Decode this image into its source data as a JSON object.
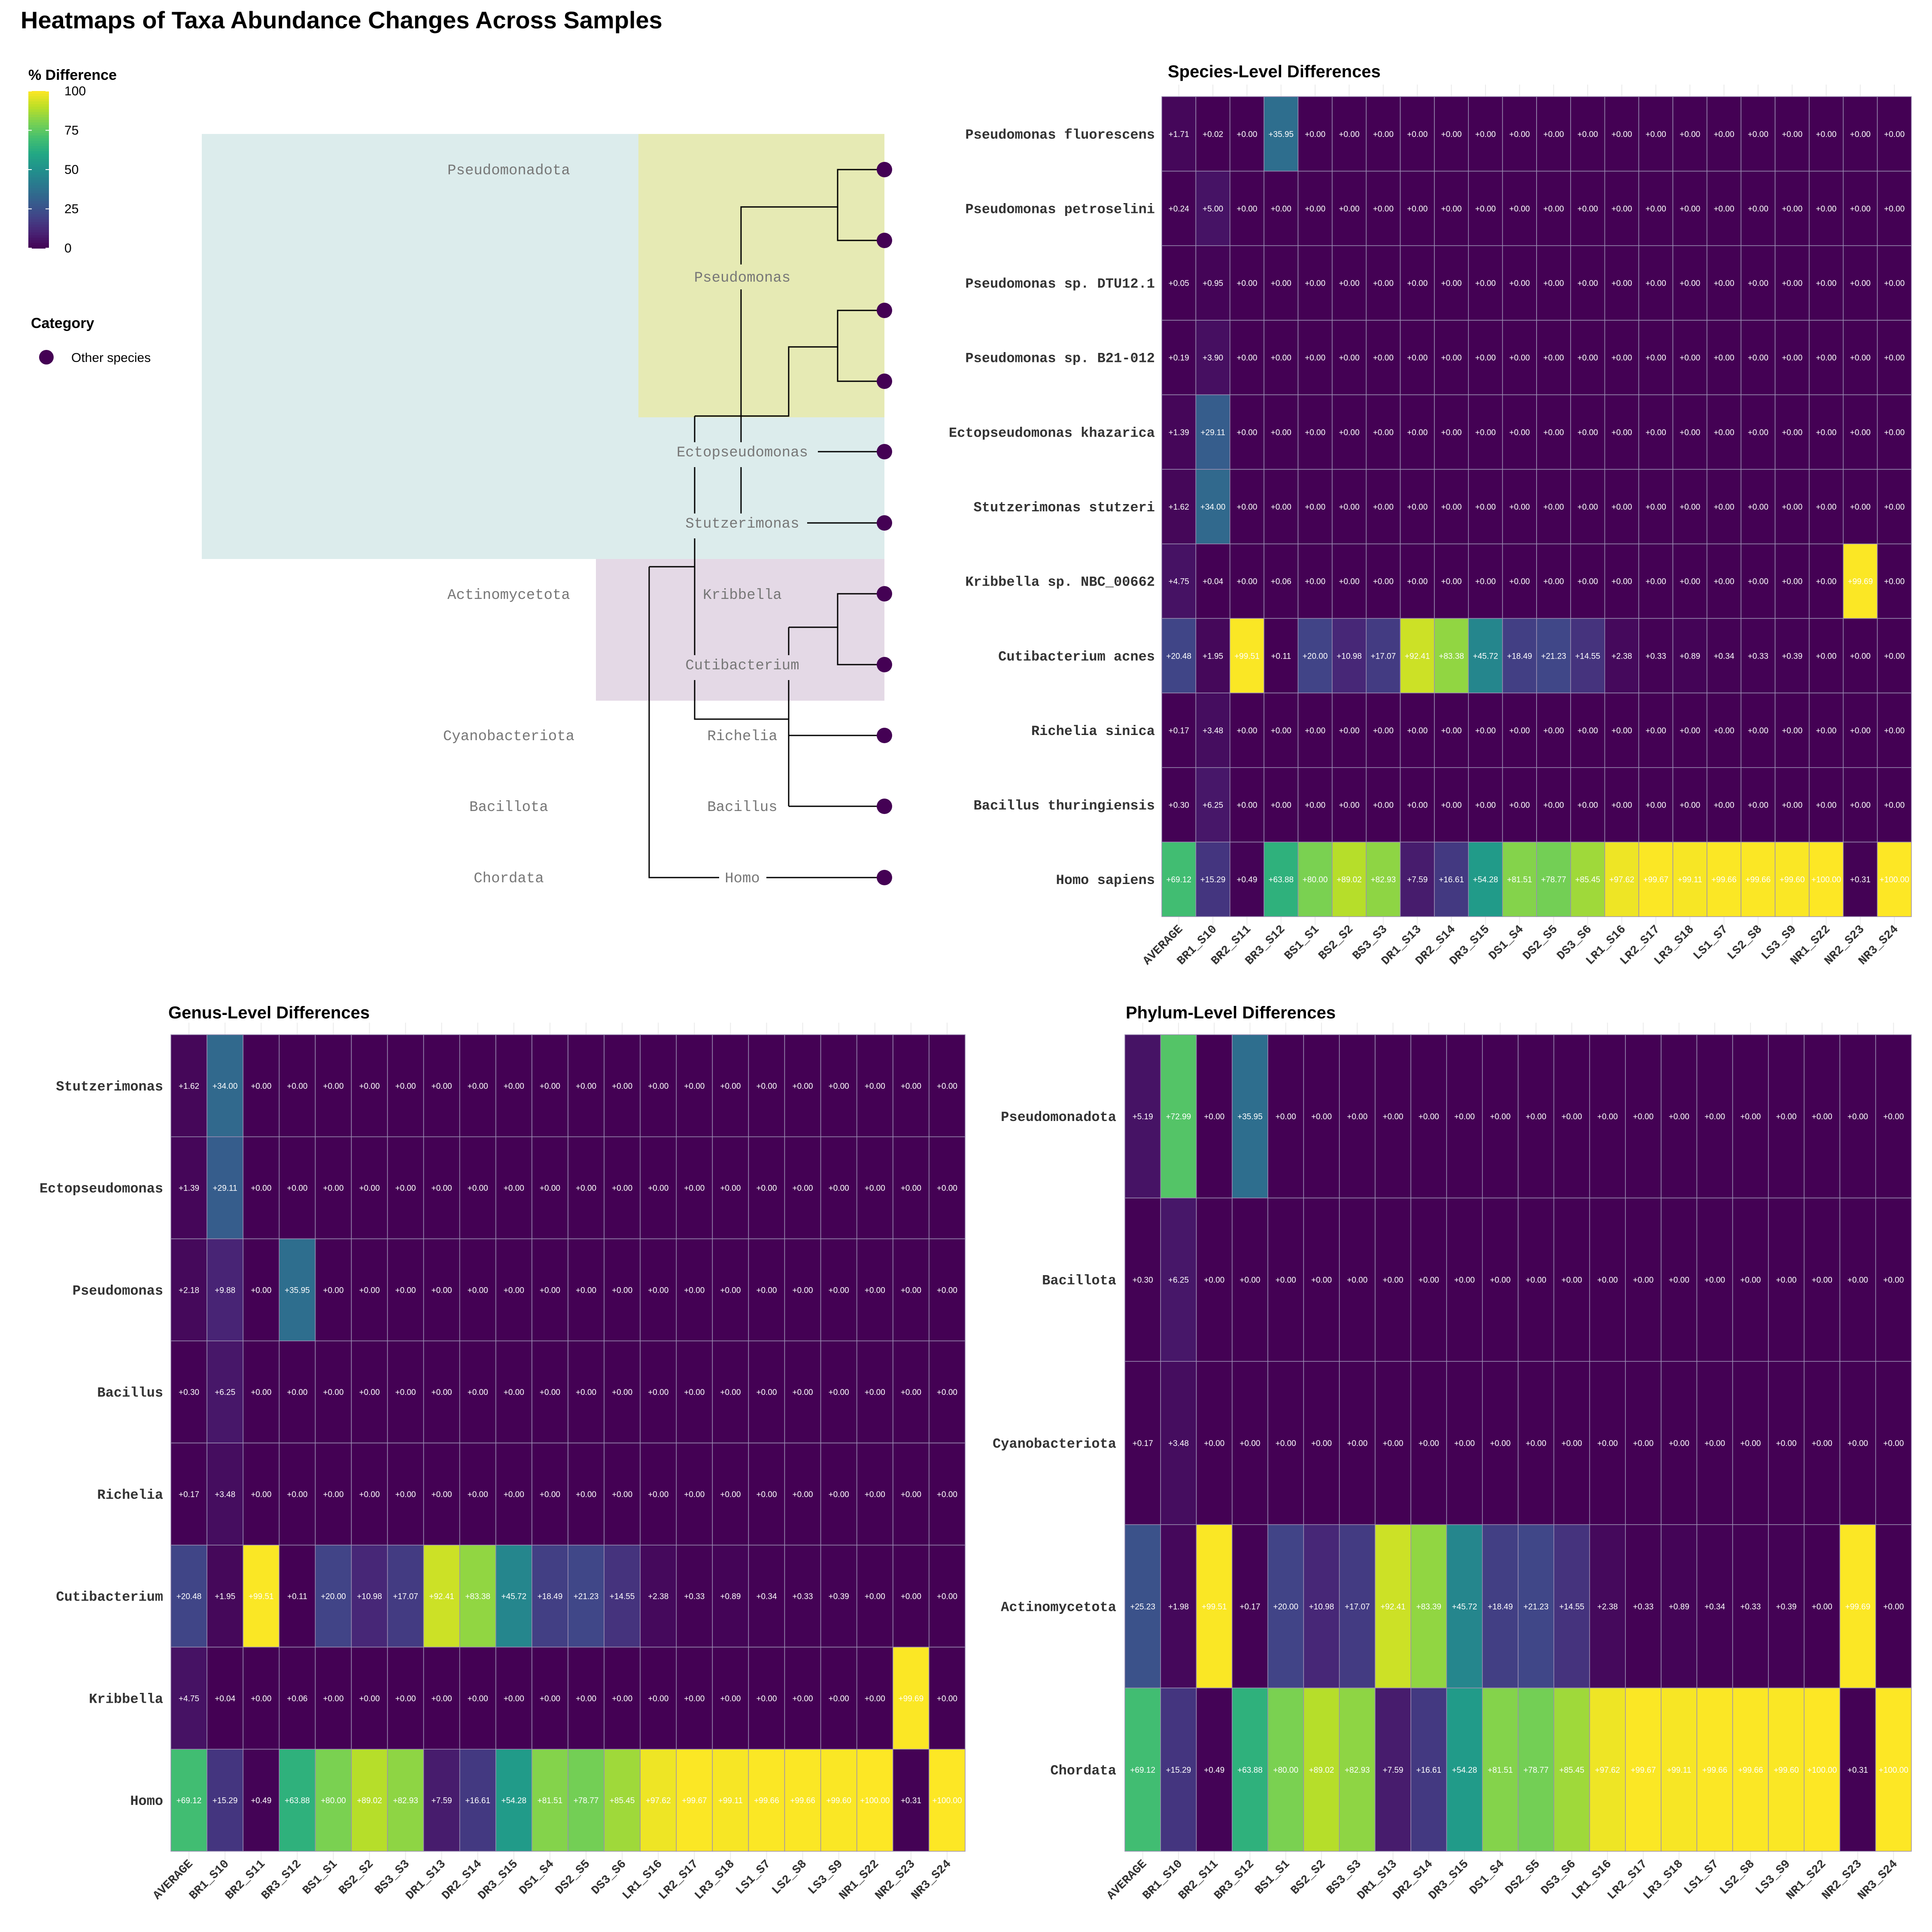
{
  "title": "Heatmaps of Taxa Abundance Changes Across Samples",
  "legend": {
    "colorbar_title": "% Difference",
    "colorbar_ticks": [
      0,
      25,
      50,
      75,
      100
    ],
    "category_title": "Category",
    "category_label": "Other species",
    "category_color": "#440154"
  },
  "colors": {
    "viridis": [
      "#440154",
      "#482475",
      "#414487",
      "#355f8d",
      "#2a788e",
      "#21918c",
      "#22a884",
      "#44bf70",
      "#7ad151",
      "#bddf26",
      "#fde725"
    ],
    "tree_bands": {
      "Pseudomonadota": "#dcecec",
      "Pseudomonas": "#e6eab4",
      "Actinomycetota": "#e4d9e6"
    },
    "leaf_dot": "#440154",
    "grid_line": "#9b8fb3"
  },
  "tree": {
    "phyla": [
      "Pseudomonadota",
      "Actinomycetota",
      "Cyanobacteriota",
      "Bacillota",
      "Chordata"
    ],
    "genera": [
      "Pseudomonas",
      "Ectopseudomonas",
      "Stutzerimonas",
      "Kribbella",
      "Cutibacterium",
      "Richelia",
      "Bacillus",
      "Homo"
    ]
  },
  "chart_data": [
    {
      "type": "heatmap",
      "title": "Species-Level Differences",
      "columns": [
        "AVERAGE",
        "BR1_S10",
        "BR2_S11",
        "BR3_S12",
        "BS1_S1",
        "BS2_S2",
        "BS3_S3",
        "DR1_S13",
        "DR2_S14",
        "DR3_S15",
        "DS1_S4",
        "DS2_S5",
        "DS3_S6",
        "LR1_S16",
        "LR2_S17",
        "LR3_S18",
        "LS1_S7",
        "LS2_S8",
        "LS3_S9",
        "NR1_S22",
        "NR2_S23",
        "NR3_S24"
      ],
      "rows": [
        "Pseudomonas fluorescens",
        "Pseudomonas petroselini",
        "Pseudomonas sp. DTU12.1",
        "Pseudomonas sp. B21-012",
        "Ectopseudomonas khazarica",
        "Stutzerimonas stutzeri",
        "Kribbella sp. NBC_00662",
        "Cutibacterium acnes",
        "Richelia sinica",
        "Bacillus thuringiensis",
        "Homo sapiens"
      ],
      "values": [
        [
          1.71,
          0.02,
          0,
          35.95,
          0,
          0,
          0,
          0,
          0,
          0,
          0,
          0,
          0,
          0,
          0,
          0,
          0,
          0,
          0,
          0,
          0,
          0
        ],
        [
          0.24,
          5.0,
          0,
          0,
          0,
          0,
          0,
          0,
          0,
          0,
          0,
          0,
          0,
          0,
          0,
          0,
          0,
          0,
          0,
          0,
          0,
          0
        ],
        [
          0.05,
          0.95,
          0,
          0,
          0,
          0,
          0,
          0,
          0,
          0,
          0,
          0,
          0,
          0,
          0,
          0,
          0,
          0,
          0,
          0,
          0,
          0
        ],
        [
          0.19,
          3.9,
          0,
          0,
          0,
          0,
          0,
          0,
          0,
          0,
          0,
          0,
          0,
          0,
          0,
          0,
          0,
          0,
          0,
          0,
          0,
          0
        ],
        [
          1.39,
          29.11,
          0,
          0,
          0,
          0,
          0,
          0,
          0,
          0,
          0,
          0,
          0,
          0,
          0,
          0,
          0,
          0,
          0,
          0,
          0,
          0
        ],
        [
          1.62,
          34.0,
          0,
          0,
          0,
          0,
          0,
          0,
          0,
          0,
          0,
          0,
          0,
          0,
          0,
          0,
          0,
          0,
          0,
          0,
          0,
          0
        ],
        [
          4.75,
          0.04,
          0,
          0.06,
          0,
          0,
          0,
          0,
          0,
          0,
          0,
          0,
          0,
          0,
          0,
          0,
          0,
          0,
          0,
          0,
          99.69,
          0
        ],
        [
          20.48,
          1.95,
          99.51,
          0.11,
          20.0,
          10.98,
          17.07,
          92.41,
          83.38,
          45.72,
          18.49,
          21.23,
          14.55,
          2.38,
          0.33,
          0.89,
          0.34,
          0.33,
          0.39,
          0,
          0,
          0
        ],
        [
          0.17,
          3.48,
          0,
          0,
          0,
          0,
          0,
          0,
          0,
          0,
          0,
          0,
          0,
          0,
          0,
          0,
          0,
          0,
          0,
          0,
          0,
          0
        ],
        [
          0.3,
          6.25,
          0,
          0,
          0,
          0,
          0,
          0,
          0,
          0,
          0,
          0,
          0,
          0,
          0,
          0,
          0,
          0,
          0,
          0,
          0,
          0
        ],
        [
          69.12,
          15.29,
          0.49,
          63.88,
          80.0,
          89.02,
          82.93,
          7.59,
          16.61,
          54.28,
          81.51,
          78.77,
          85.45,
          97.62,
          99.67,
          99.11,
          99.66,
          99.66,
          99.6,
          100.0,
          0.31,
          100.0
        ]
      ]
    },
    {
      "type": "heatmap",
      "title": "Genus-Level Differences",
      "columns": [
        "AVERAGE",
        "BR1_S10",
        "BR2_S11",
        "BR3_S12",
        "BS1_S1",
        "BS2_S2",
        "BS3_S3",
        "DR1_S13",
        "DR2_S14",
        "DR3_S15",
        "DS1_S4",
        "DS2_S5",
        "DS3_S6",
        "LR1_S16",
        "LR2_S17",
        "LR3_S18",
        "LS1_S7",
        "LS2_S8",
        "LS3_S9",
        "NR1_S22",
        "NR2_S23",
        "NR3_S24"
      ],
      "rows": [
        "Stutzerimonas",
        "Ectopseudomonas",
        "Pseudomonas",
        "Bacillus",
        "Richelia",
        "Cutibacterium",
        "Kribbella",
        "Homo"
      ],
      "values": [
        [
          1.62,
          34.0,
          0,
          0,
          0,
          0,
          0,
          0,
          0,
          0,
          0,
          0,
          0,
          0,
          0,
          0,
          0,
          0,
          0,
          0,
          0,
          0
        ],
        [
          1.39,
          29.11,
          0,
          0,
          0,
          0,
          0,
          0,
          0,
          0,
          0,
          0,
          0,
          0,
          0,
          0,
          0,
          0,
          0,
          0,
          0,
          0
        ],
        [
          2.18,
          9.88,
          0,
          35.95,
          0,
          0,
          0,
          0,
          0,
          0,
          0,
          0,
          0,
          0,
          0,
          0,
          0,
          0,
          0,
          0,
          0,
          0
        ],
        [
          0.3,
          6.25,
          0,
          0,
          0,
          0,
          0,
          0,
          0,
          0,
          0,
          0,
          0,
          0,
          0,
          0,
          0,
          0,
          0,
          0,
          0,
          0
        ],
        [
          0.17,
          3.48,
          0,
          0,
          0,
          0,
          0,
          0,
          0,
          0,
          0,
          0,
          0,
          0,
          0,
          0,
          0,
          0,
          0,
          0,
          0,
          0
        ],
        [
          20.48,
          1.95,
          99.51,
          0.11,
          20.0,
          10.98,
          17.07,
          92.41,
          83.38,
          45.72,
          18.49,
          21.23,
          14.55,
          2.38,
          0.33,
          0.89,
          0.34,
          0.33,
          0.39,
          0,
          0,
          0
        ],
        [
          4.75,
          0.04,
          0,
          0.06,
          0,
          0,
          0,
          0,
          0,
          0,
          0,
          0,
          0,
          0,
          0,
          0,
          0,
          0,
          0,
          0,
          99.69,
          0
        ],
        [
          69.12,
          15.29,
          0.49,
          63.88,
          80.0,
          89.02,
          82.93,
          7.59,
          16.61,
          54.28,
          81.51,
          78.77,
          85.45,
          97.62,
          99.67,
          99.11,
          99.66,
          99.66,
          99.6,
          100.0,
          0.31,
          100.0
        ]
      ]
    },
    {
      "type": "heatmap",
      "title": "Phylum-Level Differences",
      "columns": [
        "AVERAGE",
        "BR1_S10",
        "BR2_S11",
        "BR3_S12",
        "BS1_S1",
        "BS2_S2",
        "BS3_S3",
        "DR1_S13",
        "DR2_S14",
        "DR3_S15",
        "DS1_S4",
        "DS2_S5",
        "DS3_S6",
        "LR1_S16",
        "LR2_S17",
        "LR3_S18",
        "LS1_S7",
        "LS2_S8",
        "LS3_S9",
        "NR1_S22",
        "NR2_S23",
        "NR3_S24"
      ],
      "rows": [
        "Pseudomonadota",
        "Bacillota",
        "Cyanobacteriota",
        "Actinomycetota",
        "Chordata"
      ],
      "values": [
        [
          5.19,
          72.99,
          0,
          35.95,
          0,
          0,
          0,
          0,
          0,
          0,
          0,
          0,
          0,
          0,
          0,
          0,
          0,
          0,
          0,
          0,
          0,
          0
        ],
        [
          0.3,
          6.25,
          0,
          0,
          0,
          0,
          0,
          0,
          0,
          0,
          0,
          0,
          0,
          0,
          0,
          0,
          0,
          0,
          0,
          0,
          0,
          0
        ],
        [
          0.17,
          3.48,
          0,
          0,
          0,
          0,
          0,
          0,
          0,
          0,
          0,
          0,
          0,
          0,
          0,
          0,
          0,
          0,
          0,
          0,
          0,
          0
        ],
        [
          25.23,
          1.98,
          99.51,
          0.17,
          20.0,
          10.98,
          17.07,
          92.41,
          83.39,
          45.72,
          18.49,
          21.23,
          14.55,
          2.38,
          0.33,
          0.89,
          0.34,
          0.33,
          0.39,
          0,
          99.69,
          0
        ],
        [
          69.12,
          15.29,
          0.49,
          63.88,
          80.0,
          89.02,
          82.93,
          7.59,
          16.61,
          54.28,
          81.51,
          78.77,
          85.45,
          97.62,
          99.67,
          99.11,
          99.66,
          99.66,
          99.6,
          100.0,
          0.31,
          100.0
        ]
      ]
    }
  ]
}
